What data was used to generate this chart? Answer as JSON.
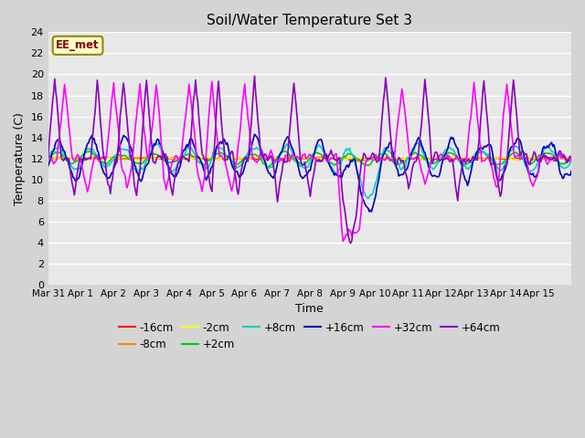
{
  "title": "Soil/Water Temperature Set 3",
  "xlabel": "Time",
  "ylabel": "Temperature (C)",
  "ylim": [
    0,
    24
  ],
  "yticks": [
    0,
    2,
    4,
    6,
    8,
    10,
    12,
    14,
    16,
    18,
    20,
    22,
    24
  ],
  "legend_label": "EE_met",
  "series_order": [
    "-16cm",
    "-8cm",
    "-2cm",
    "+2cm",
    "+8cm",
    "+16cm",
    "+32cm",
    "+64cm"
  ],
  "series_colors": {
    "-16cm": "#ff0000",
    "-8cm": "#ff8800",
    "-2cm": "#ffff00",
    "+2cm": "#00cc00",
    "+8cm": "#00cccc",
    "+16cm": "#0000bb",
    "+32cm": "#ff00ff",
    "+64cm": "#8800bb"
  },
  "xtick_labels": [
    "Mar 31",
    "Apr 1",
    "Apr 2",
    "Apr 3",
    "Apr 4",
    "Apr 5",
    "Apr 6",
    "Apr 7",
    "Apr 8",
    "Apr 9",
    "Apr 10",
    "Apr 11",
    "Apr 12",
    "Apr 13",
    "Apr 14",
    "Apr 15"
  ],
  "base_temp": 12.0,
  "n_points": 480,
  "lw": 1.2
}
